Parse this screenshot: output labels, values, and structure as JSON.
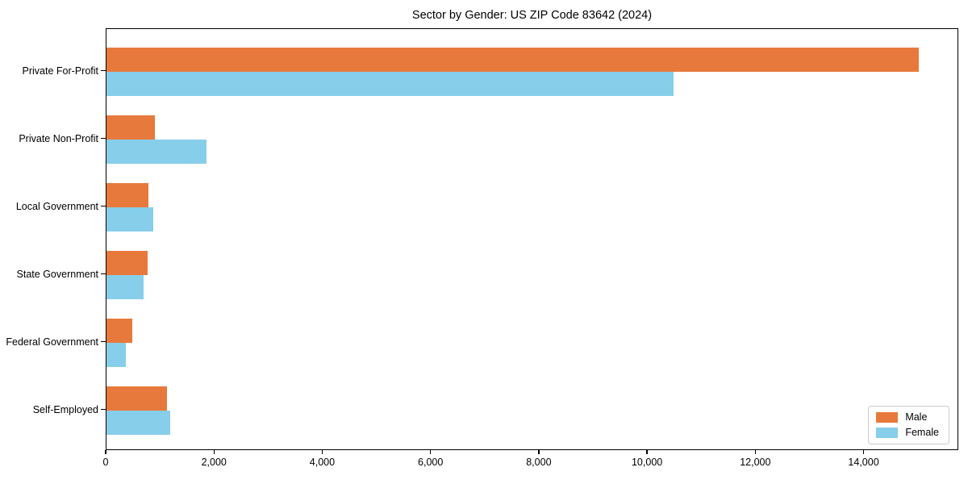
{
  "chart_data": {
    "type": "bar",
    "orientation": "horizontal",
    "title": "Sector by Gender: US ZIP Code 83642 (2024)",
    "categories": [
      "Private For-Profit",
      "Private Non-Profit",
      "Local Government",
      "State Government",
      "Federal Government",
      "Self-Employed"
    ],
    "series": [
      {
        "name": "Male",
        "color": "#e8793c",
        "values": [
          15000,
          900,
          770,
          760,
          480,
          1110
        ]
      },
      {
        "name": "Female",
        "color": "#87ceeb",
        "values": [
          10470,
          1850,
          860,
          690,
          350,
          1170
        ]
      }
    ],
    "xlim": [
      0,
      15750
    ],
    "xticks": [
      0,
      2000,
      4000,
      6000,
      8000,
      10000,
      12000,
      14000
    ],
    "xtick_labels": [
      "0",
      "2,000",
      "4,000",
      "6,000",
      "8,000",
      "10,000",
      "12,000",
      "14,000"
    ],
    "ylabel": "",
    "xlabel": "",
    "grid": false,
    "legend": {
      "position": "lower right"
    },
    "colors": {
      "axis": "#000000",
      "background": "#ffffff",
      "legend_border": "#cccccc"
    }
  }
}
